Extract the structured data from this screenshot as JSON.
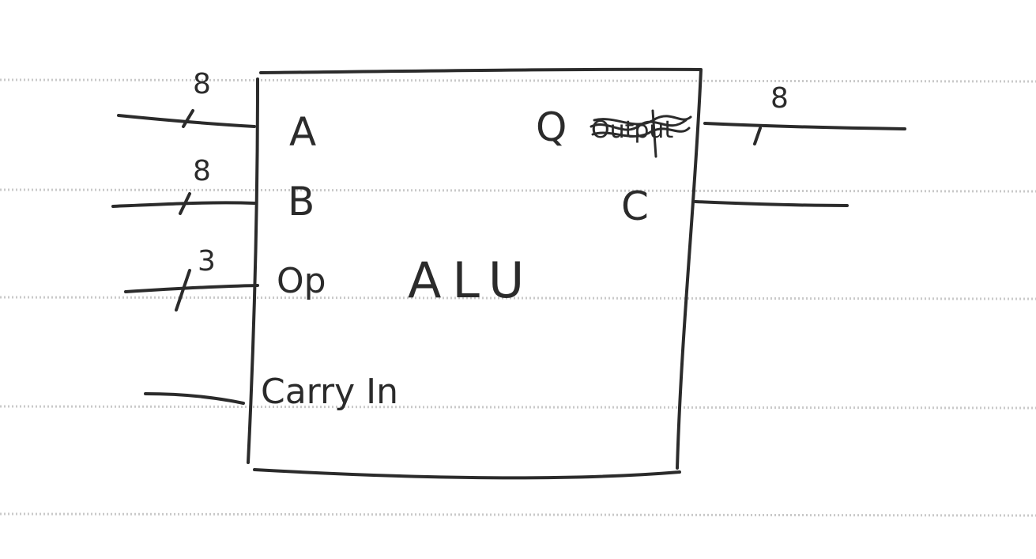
{
  "block": {
    "title": "ALU"
  },
  "inputs": {
    "a": {
      "label": "A",
      "width": "8"
    },
    "b": {
      "label": "B",
      "width": "8"
    },
    "op": {
      "label": "Op",
      "width": "3"
    },
    "carry_in": {
      "label": "Carry In"
    }
  },
  "outputs": {
    "q": {
      "label": "Q",
      "width": "8",
      "crossed_word": "Output"
    },
    "c": {
      "label": "C"
    }
  },
  "colors": {
    "ink": "#2b2b2b",
    "paper": "#ffffff",
    "ruled_lines": "#c9c9c9"
  }
}
